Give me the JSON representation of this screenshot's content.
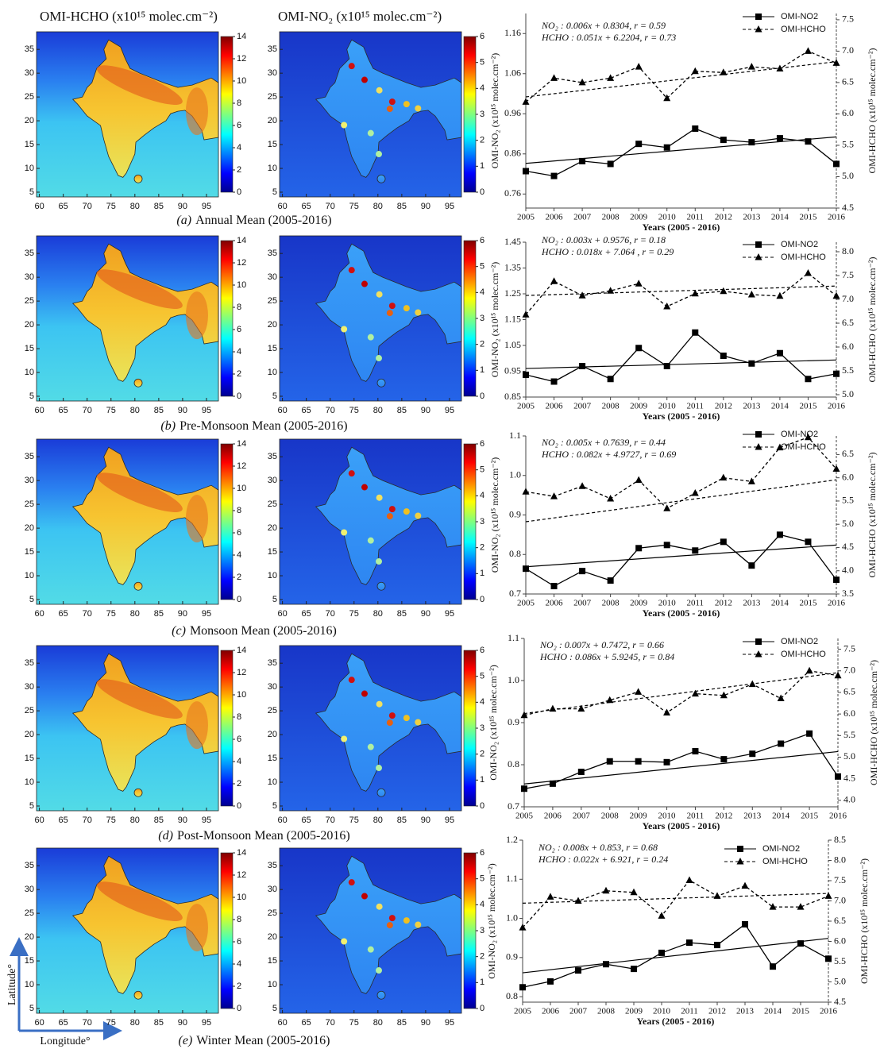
{
  "headers": {
    "hcho": "OMI-HCHO (x10¹⁵ molec.cm⁻²)",
    "no2": "OMI-NO₂ (x10¹⁵ molec.cm⁻²)"
  },
  "maps": {
    "xlim": [
      59.4,
      97.5
    ],
    "ylim": [
      4,
      38.7
    ],
    "xticks": [
      60,
      65,
      70,
      75,
      80,
      85,
      90,
      95
    ],
    "yticks": [
      5,
      10,
      15,
      20,
      25,
      30,
      35
    ],
    "hcho_colorbar": {
      "clim": [
        0,
        14
      ],
      "ticks": [
        0,
        2,
        4,
        6,
        8,
        10,
        12,
        14
      ]
    },
    "no2_colorbar": {
      "clim": [
        0,
        6
      ],
      "ticks": [
        0,
        1,
        2,
        3,
        4,
        5,
        6
      ]
    }
  },
  "captions": [
    {
      "label": "(a)",
      "text": "Annual Mean (2005-2016)"
    },
    {
      "label": "(b)",
      "text": "Pre-Monsoon Mean (2005-2016)"
    },
    {
      "label": "(c)",
      "text": "Monsoon Mean (2005-2016)"
    },
    {
      "label": "(d)",
      "text": "Post-Monsoon Mean (2005-2016)"
    },
    {
      "label": "(e)",
      "text": "Winter Mean (2005-2016)"
    }
  ],
  "axis_arrows": {
    "y": "Latitude°",
    "x": "Longitude°"
  },
  "chart_data": [
    {
      "type": "line",
      "annotations": [
        "NO₂    : 0.006x + 0.8304, r = 0.59",
        "HCHO : 0.051x + 6.2204, r = 0.73"
      ],
      "x": [
        2005,
        2006,
        2007,
        2008,
        2009,
        2010,
        2011,
        2012,
        2013,
        2014,
        2015,
        2016
      ],
      "xlim": [
        2005,
        2016
      ],
      "xticks": [
        2005,
        2006,
        2007,
        2008,
        2009,
        2010,
        2011,
        2012,
        2013,
        2014,
        2015,
        2016
      ],
      "xlabel": "Years (2005 - 2016)",
      "ylabel": "OMI-NO₂ (x10¹⁵ molec.cm⁻²)",
      "y2label": "OMI-HCHO (x10¹⁵ molec.cm⁻²)",
      "ylim": [
        0.725,
        1.21
      ],
      "yticks": [
        0.76,
        0.86,
        0.96,
        1.06,
        1.16
      ],
      "y2lim": [
        4.5,
        7.6
      ],
      "y2ticks": [
        4.5,
        {
          "value": 5,
          "label": "5.0"
        },
        5.5,
        {
          "value": 6,
          "label": "6.0"
        },
        6.5,
        {
          "value": 7,
          "label": "7.0"
        },
        7.5
      ],
      "series": [
        {
          "name": "OMI-NO2",
          "color": "#000000",
          "marker": "square",
          "dash": false,
          "values": [
            0.817,
            0.805,
            0.842,
            0.835,
            0.885,
            0.876,
            0.923,
            0.895,
            0.889,
            0.899,
            0.891,
            0.835
          ],
          "trend": {
            "slope": 0.006,
            "intercept": 0.8304
          }
        },
        {
          "name": "OMI-HCHO",
          "color": "#000000",
          "marker": "triangle",
          "dash": true,
          "axis": "y2",
          "values": [
            6.19,
            6.57,
            6.5,
            6.57,
            6.75,
            6.25,
            6.68,
            6.66,
            6.75,
            6.72,
            7.0,
            6.81
          ],
          "trend": {
            "slope": 0.051,
            "intercept": 6.2204
          }
        }
      ]
    },
    {
      "type": "line",
      "annotations": [
        "NO₂    : 0.003x + 0.9576, r = 0.18",
        "HCHO : 0.018x + 7.064 , r = 0.29"
      ],
      "x": [
        2005,
        2006,
        2007,
        2008,
        2009,
        2010,
        2011,
        2012,
        2013,
        2014,
        2015,
        2016
      ],
      "xlim": [
        2005,
        2016
      ],
      "xticks": [
        2005,
        2006,
        2007,
        2008,
        2009,
        2010,
        2011,
        2012,
        2013,
        2014,
        2015,
        2016
      ],
      "xlabel": "Years (2005 - 2016)",
      "ylabel": "OMI-NO₂ (x10¹⁵ molec.cm⁻²)",
      "y2label": "OMI-HCHO (x10¹⁵ molec.cm⁻²)",
      "ylim": [
        0.85,
        1.45
      ],
      "yticks": [
        0.85,
        0.95,
        1.05,
        1.15,
        1.25,
        1.35,
        1.45
      ],
      "y2lim": [
        4.95,
        8.2
      ],
      "y2ticks": [
        {
          "value": 5,
          "label": "5.0"
        },
        5.5,
        {
          "value": 6,
          "label": "6.0"
        },
        6.5,
        {
          "value": 7,
          "label": "7.0"
        },
        7.5,
        {
          "value": 8,
          "label": "8.0"
        }
      ],
      "series": [
        {
          "name": "OMI-NO2",
          "color": "#000000",
          "marker": "square",
          "dash": false,
          "values": [
            0.936,
            0.91,
            0.97,
            0.92,
            1.04,
            0.97,
            1.1,
            1.01,
            0.98,
            1.02,
            0.92,
            0.94
          ],
          "trend": {
            "slope": 0.003,
            "intercept": 0.9576
          }
        },
        {
          "name": "OMI-HCHO",
          "color": "#000000",
          "marker": "triangle",
          "dash": true,
          "axis": "y2",
          "values": [
            6.68,
            7.38,
            7.08,
            7.18,
            7.33,
            6.85,
            7.12,
            7.17,
            7.1,
            7.07,
            7.55,
            7.07
          ],
          "trend": {
            "slope": 0.018,
            "intercept": 7.064
          }
        }
      ]
    },
    {
      "type": "line",
      "annotations": [
        "NO₂    : 0.005x + 0.7639, r = 0.44",
        "HCHO : 0.082x + 4.9727, r = 0.69"
      ],
      "x": [
        2005,
        2006,
        2007,
        2008,
        2009,
        2010,
        2011,
        2012,
        2013,
        2014,
        2015,
        2016
      ],
      "xlim": [
        2005,
        2016
      ],
      "xticks": [
        2005,
        2006,
        2007,
        2008,
        2009,
        2010,
        2011,
        2012,
        2013,
        2014,
        2015,
        2016
      ],
      "xlabel": "Years (2005 - 2016)",
      "ylabel": "OMI-NO₂ (x10¹⁵ molec.cm⁻²)",
      "y2label": "OMI-HCHO (x10¹⁵ molec.cm⁻²)",
      "ylim": [
        0.7,
        1.1
      ],
      "yticks": [
        0.7,
        0.8,
        0.9,
        {
          "value": 1,
          "label": "1.0"
        },
        1.1
      ],
      "y2lim": [
        3.5,
        6.9
      ],
      "y2ticks": [
        3.5,
        {
          "value": 4,
          "label": "4.0"
        },
        4.5,
        {
          "value": 5,
          "label": "5.0"
        },
        5.5,
        {
          "value": 6,
          "label": "6.0"
        },
        6.5
      ],
      "series": [
        {
          "name": "OMI-NO2",
          "color": "#000000",
          "marker": "square",
          "dash": false,
          "values": [
            0.764,
            0.72,
            0.758,
            0.734,
            0.816,
            0.824,
            0.81,
            0.832,
            0.772,
            0.85,
            0.832,
            0.736
          ],
          "trend": {
            "slope": 0.005,
            "intercept": 0.7639
          }
        },
        {
          "name": "OMI-HCHO",
          "color": "#000000",
          "marker": "triangle",
          "dash": true,
          "axis": "y2",
          "values": [
            5.7,
            5.6,
            5.82,
            5.55,
            5.95,
            5.34,
            5.67,
            6.0,
            5.92,
            6.65,
            6.87,
            6.19
          ],
          "trend": {
            "slope": 0.082,
            "intercept": 4.9727
          }
        }
      ]
    },
    {
      "type": "line",
      "annotations": [
        "NO₂    : 0.007x + 0.7472, r = 0.66",
        "HCHO : 0.086x + 5.9245, r = 0.84"
      ],
      "x": [
        2005,
        2006,
        2007,
        2008,
        2009,
        2010,
        2011,
        2012,
        2013,
        2014,
        2015,
        2016
      ],
      "xlim": [
        2005,
        2016
      ],
      "xticks": [
        2005,
        2006,
        2007,
        2008,
        2009,
        2010,
        2011,
        2012,
        2013,
        2014,
        2015,
        2016
      ],
      "xlabel": "Years (2005 - 2016)",
      "ylabel": "OMI-NO₂ (x10¹⁵ molec.cm⁻²)",
      "y2label": "OMI-HCHO (x10¹⁵ molec.cm⁻²)",
      "ylim": [
        0.7,
        1.1
      ],
      "yticks": [
        0.7,
        0.8,
        0.9,
        {
          "value": 1,
          "label": "1.0"
        },
        1.1
      ],
      "y2lim": [
        3.85,
        7.75
      ],
      "y2ticks": [
        {
          "value": 4,
          "label": "4.0"
        },
        4.5,
        {
          "value": 5,
          "label": "5.0"
        },
        5.5,
        {
          "value": 6,
          "label": "6.0"
        },
        6.5,
        {
          "value": 7,
          "label": "7.0"
        },
        7.5
      ],
      "series": [
        {
          "name": "OMI-NO2",
          "color": "#000000",
          "marker": "square",
          "dash": false,
          "values": [
            0.743,
            0.755,
            0.783,
            0.808,
            0.808,
            0.806,
            0.832,
            0.813,
            0.826,
            0.85,
            0.874,
            0.772
          ],
          "trend": {
            "slope": 0.007,
            "intercept": 0.7472
          }
        },
        {
          "name": "OMI-HCHO",
          "color": "#000000",
          "marker": "triangle",
          "dash": true,
          "axis": "y2",
          "values": [
            5.97,
            6.12,
            6.12,
            6.32,
            6.51,
            6.03,
            6.47,
            6.43,
            6.69,
            6.36,
            7.0,
            6.89
          ],
          "trend": {
            "slope": 0.086,
            "intercept": 5.9245
          }
        }
      ]
    },
    {
      "type": "line",
      "annotations": [
        "NO₂    : 0.008x + 0.853, r = 0.68",
        "HCHO : 0.022x + 6.921, r = 0.24"
      ],
      "x": [
        2005,
        2006,
        2007,
        2008,
        2009,
        2010,
        2011,
        2012,
        2013,
        2014,
        2015,
        2016
      ],
      "xlim": [
        2005,
        2016
      ],
      "xticks": [
        2005,
        2006,
        2007,
        2008,
        2009,
        2010,
        2011,
        2012,
        2013,
        2014,
        2015,
        2016
      ],
      "xlabel": "Years (2005 - 2016)",
      "ylabel": "OMI-NO₂ (x10¹⁵ molec.cm⁻²)",
      "y2label": "OMI-HCHO (x10¹⁵ molec.cm⁻²)",
      "ylim": [
        0.786,
        1.2
      ],
      "yticks": [
        0.8,
        0.9,
        {
          "value": 1,
          "label": "1.0"
        },
        1.1,
        1.2
      ],
      "y2lim": [
        4.5,
        8.5
      ],
      "y2ticks": [
        4.5,
        {
          "value": 5,
          "label": "5.0"
        },
        5.5,
        {
          "value": 6,
          "label": "6.0"
        },
        6.5,
        {
          "value": 7,
          "label": "7.0"
        },
        7.5,
        {
          "value": 8,
          "label": "8.0"
        },
        8.5
      ],
      "series": [
        {
          "name": "OMI-NO2",
          "color": "#000000",
          "marker": "square",
          "dash": false,
          "values": [
            0.824,
            0.839,
            0.867,
            0.883,
            0.871,
            0.912,
            0.938,
            0.932,
            0.985,
            0.877,
            0.936,
            0.897
          ],
          "trend": {
            "slope": 0.008,
            "intercept": 0.853
          }
        },
        {
          "name": "OMI-HCHO",
          "color": "#000000",
          "marker": "triangle",
          "dash": true,
          "axis": "y2",
          "values": [
            6.34,
            7.1,
            7.0,
            7.25,
            7.21,
            6.63,
            7.51,
            7.12,
            7.37,
            6.85,
            6.85,
            7.12
          ],
          "trend": {
            "slope": 0.022,
            "intercept": 6.921
          }
        }
      ]
    }
  ]
}
